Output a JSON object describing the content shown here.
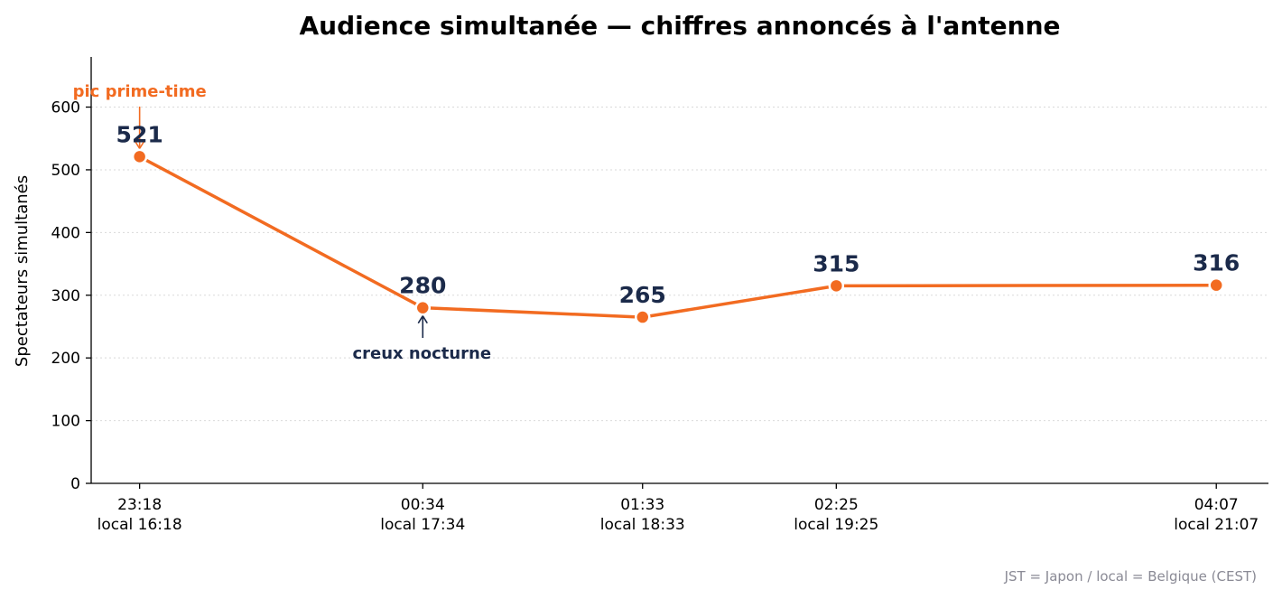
{
  "chart_data": {
    "type": "line",
    "title": "Audience simultanée — chiffres annoncés à l'antenne",
    "xlabel": "",
    "ylabel": "Spectateurs simultanés",
    "ylim": [
      0,
      680
    ],
    "yticks": [
      0,
      100,
      200,
      300,
      400,
      500,
      600
    ],
    "grid": "horizontal dotted",
    "series_color": "#f26b21",
    "label_color": "#1b2a4a",
    "points": [
      {
        "t": "23:18",
        "local": "local 16:18",
        "minutes": 1398,
        "value": 521
      },
      {
        "t": "00:34",
        "local": "local 17:34",
        "minutes": 1474,
        "value": 280
      },
      {
        "t": "01:33",
        "local": "local 18:33",
        "minutes": 1533,
        "value": 265
      },
      {
        "t": "02:25",
        "local": "local 19:25",
        "minutes": 1585,
        "value": 315
      },
      {
        "t": "04:07",
        "local": "local 21:07",
        "minutes": 1687,
        "value": 316
      }
    ],
    "annotations": [
      {
        "text": "pic prime-time",
        "point_index": 0,
        "color": "#f26b21"
      },
      {
        "text": "creux nocturne",
        "point_index": 1,
        "color": "#1b2a4a"
      }
    ],
    "footnote": "JST = Japon / local = Belgique (CEST)"
  }
}
